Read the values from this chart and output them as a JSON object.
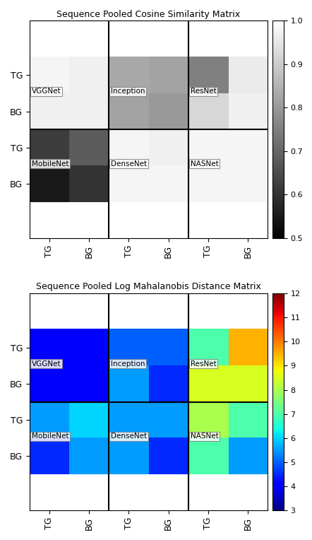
{
  "cosine_title": "Sequence Pooled Cosine Similarity Matrix",
  "mahal_title": "Sequence Pooled Log Mahalanobis Distance Matrix",
  "row_labels": [
    "TG",
    "BG",
    "TG",
    "BG"
  ],
  "col_labels": [
    "TG",
    "BG",
    "TG",
    "BG",
    "TG",
    "BG"
  ],
  "cosine_matrix": [
    [
      0.98,
      0.97,
      0.83,
      0.82,
      0.75,
      0.96
    ],
    [
      0.97,
      0.97,
      0.82,
      0.8,
      0.92,
      0.97
    ],
    [
      0.62,
      0.68,
      0.98,
      0.97,
      0.98,
      0.98
    ],
    [
      0.55,
      0.6,
      0.98,
      0.98,
      0.98,
      0.98
    ]
  ],
  "mahal_matrix": [
    [
      4.0,
      4.0,
      5.0,
      5.0,
      7.0,
      9.5
    ],
    [
      4.0,
      4.0,
      5.5,
      4.5,
      8.5,
      8.5
    ],
    [
      5.5,
      6.0,
      5.5,
      5.5,
      8.0,
      7.0
    ],
    [
      4.5,
      5.5,
      5.5,
      4.5,
      7.0,
      5.5
    ]
  ],
  "cosine_vmin": 0.5,
  "cosine_vmax": 1.0,
  "cosine_cticks": [
    0.5,
    0.6,
    0.7,
    0.8,
    0.9,
    1.0
  ],
  "mahal_vmin": 3,
  "mahal_vmax": 12,
  "mahal_cticks": [
    3,
    4,
    5,
    6,
    7,
    8,
    9,
    10,
    11,
    12
  ],
  "label_fontsize": 9,
  "title_fontsize": 9,
  "net_label_fontsize": 7.5,
  "net_labels_top": [
    [
      "VGGNet",
      0
    ],
    [
      "Inception",
      2
    ],
    [
      "ResNet",
      4
    ]
  ],
  "net_labels_bottom": [
    [
      "MobileNet",
      0
    ],
    [
      "DenseNet",
      2
    ],
    [
      "NASNet",
      4
    ]
  ],
  "figsize": [
    4.42,
    7.64
  ],
  "dpi": 100
}
